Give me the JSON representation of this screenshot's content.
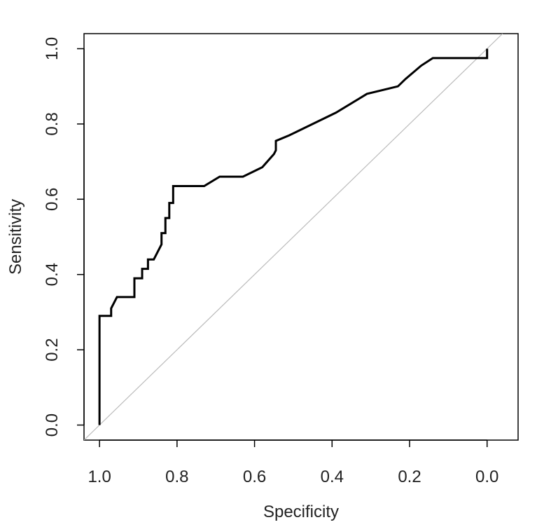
{
  "chart_data": {
    "type": "line",
    "title": "",
    "xlabel": "Specificity",
    "ylabel": "Sensitivity",
    "x_reversed": true,
    "xlim": [
      1.04,
      -0.08
    ],
    "ylim": [
      -0.04,
      1.04
    ],
    "x_ticks": [
      "1.0",
      "0.8",
      "0.6",
      "0.4",
      "0.2",
      "0.0"
    ],
    "y_ticks": [
      "0.0",
      "0.2",
      "0.4",
      "0.6",
      "0.8",
      "1.0"
    ],
    "grid": false,
    "legend": false,
    "series": [
      {
        "color": "#000000",
        "x": [
          1.0,
          1.0,
          0.97,
          0.97,
          0.955,
          0.91,
          0.91,
          0.89,
          0.89,
          0.875,
          0.875,
          0.86,
          0.84,
          0.84,
          0.83,
          0.83,
          0.82,
          0.82,
          0.81,
          0.81,
          0.73,
          0.69,
          0.63,
          0.58,
          0.55,
          0.545,
          0.545,
          0.51,
          0.39,
          0.31,
          0.23,
          0.21,
          0.17,
          0.14,
          0.0,
          0.0
        ],
        "y": [
          0.0,
          0.29,
          0.29,
          0.31,
          0.34,
          0.34,
          0.39,
          0.39,
          0.415,
          0.415,
          0.44,
          0.44,
          0.48,
          0.51,
          0.51,
          0.55,
          0.55,
          0.59,
          0.59,
          0.635,
          0.635,
          0.66,
          0.66,
          0.685,
          0.72,
          0.73,
          0.755,
          0.77,
          0.83,
          0.88,
          0.9,
          0.92,
          0.955,
          0.975,
          0.975,
          1.0
        ]
      },
      {
        "color": "#bbbbbb",
        "x": [
          1.04,
          -0.04
        ],
        "y": [
          -0.04,
          1.04
        ]
      }
    ]
  }
}
